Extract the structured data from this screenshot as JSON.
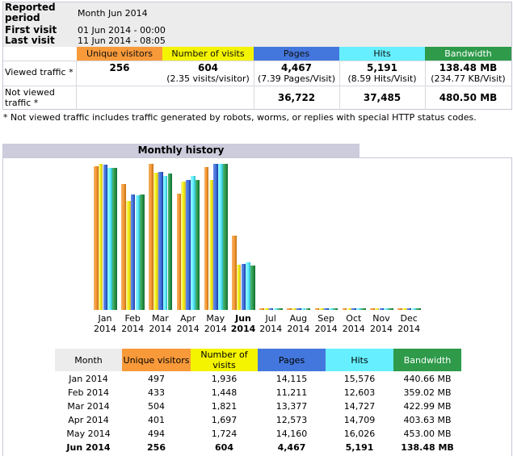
{
  "summary": {
    "reported_period_label": "Reported period",
    "reported_period_value": "Month Jun 2014",
    "first_visit_label": "First visit",
    "first_visit_value": "01 Jun 2014 - 00:00",
    "last_visit_label": "Last visit",
    "last_visit_value": "11 Jun 2014 - 08:05",
    "columns": [
      "Unique visitors",
      "Number of visits",
      "Pages",
      "Hits",
      "Bandwidth"
    ],
    "viewed_label": "Viewed traffic *",
    "viewed": {
      "unique": "256",
      "visits": "604",
      "visits_sub": "(2.35 visits/visitor)",
      "pages": "4,467",
      "pages_sub": "(7.39 Pages/Visit)",
      "hits": "5,191",
      "hits_sub": "(8.59 Hits/Visit)",
      "bandwidth": "138.48 MB",
      "bandwidth_sub": "(234.77 KB/Visit)"
    },
    "not_viewed_label": "Not viewed traffic *",
    "not_viewed": {
      "pages": "36,722",
      "hits": "37,485",
      "bandwidth": "480.50 MB"
    },
    "footnote": "* Not viewed traffic includes traffic generated by robots, worms, or replies with special HTTP status codes."
  },
  "monthly": {
    "title": "Monthly history",
    "table_headers": [
      "Month",
      "Unique visitors",
      "Number of visits",
      "Pages",
      "Hits",
      "Bandwidth"
    ],
    "rows": [
      [
        "Jan 2014",
        "497",
        "1,936",
        "14,115",
        "15,576",
        "440.66 MB"
      ],
      [
        "Feb 2014",
        "433",
        "1,448",
        "11,211",
        "12,603",
        "359.02 MB"
      ],
      [
        "Mar 2014",
        "504",
        "1,821",
        "13,377",
        "14,727",
        "422.99 MB"
      ],
      [
        "Apr 2014",
        "401",
        "1,697",
        "12,573",
        "14,709",
        "403.63 MB"
      ],
      [
        "May 2014",
        "494",
        "1,724",
        "14,160",
        "16,026",
        "453.00 MB"
      ],
      [
        "Jun 2014",
        "256",
        "604",
        "4,467",
        "5,191",
        "138.48 MB"
      ]
    ]
  },
  "colors": {
    "unique": "#f89a3a",
    "visits": "#f4f400",
    "pages": "#4477dd",
    "hits": "#66f0ff",
    "bandwidth": "#2e9a4a"
  },
  "chart_data": {
    "type": "bar",
    "categories": [
      "Jan 2014",
      "Feb 2014",
      "Mar 2014",
      "Apr 2014",
      "May 2014",
      "Jun 2014",
      "Jul 2014",
      "Aug 2014",
      "Sep 2014",
      "Oct 2014",
      "Nov 2014",
      "Dec 2014"
    ],
    "series": [
      {
        "name": "Unique visitors",
        "values": [
          497,
          433,
          504,
          401,
          494,
          256,
          0,
          0,
          0,
          0,
          0,
          0
        ]
      },
      {
        "name": "Number of visits",
        "values": [
          1936,
          1448,
          1821,
          1697,
          1724,
          604,
          0,
          0,
          0,
          0,
          0,
          0
        ]
      },
      {
        "name": "Pages",
        "values": [
          14115,
          11211,
          13377,
          12573,
          14160,
          4467,
          0,
          0,
          0,
          0,
          0,
          0
        ]
      },
      {
        "name": "Hits",
        "values": [
          15576,
          12603,
          14727,
          14709,
          16026,
          5191,
          0,
          0,
          0,
          0,
          0,
          0
        ]
      },
      {
        "name": "Bandwidth",
        "values": [
          440.66,
          359.02,
          422.99,
          403.63,
          453.0,
          138.48,
          0,
          0,
          0,
          0,
          0,
          0
        ]
      }
    ],
    "month_labels": [
      "Jan",
      "Feb",
      "Mar",
      "Apr",
      "May",
      "Jun",
      "Jul",
      "Aug",
      "Sep",
      "Oct",
      "Nov",
      "Dec"
    ],
    "year_label": "2014",
    "current_index": 5
  }
}
